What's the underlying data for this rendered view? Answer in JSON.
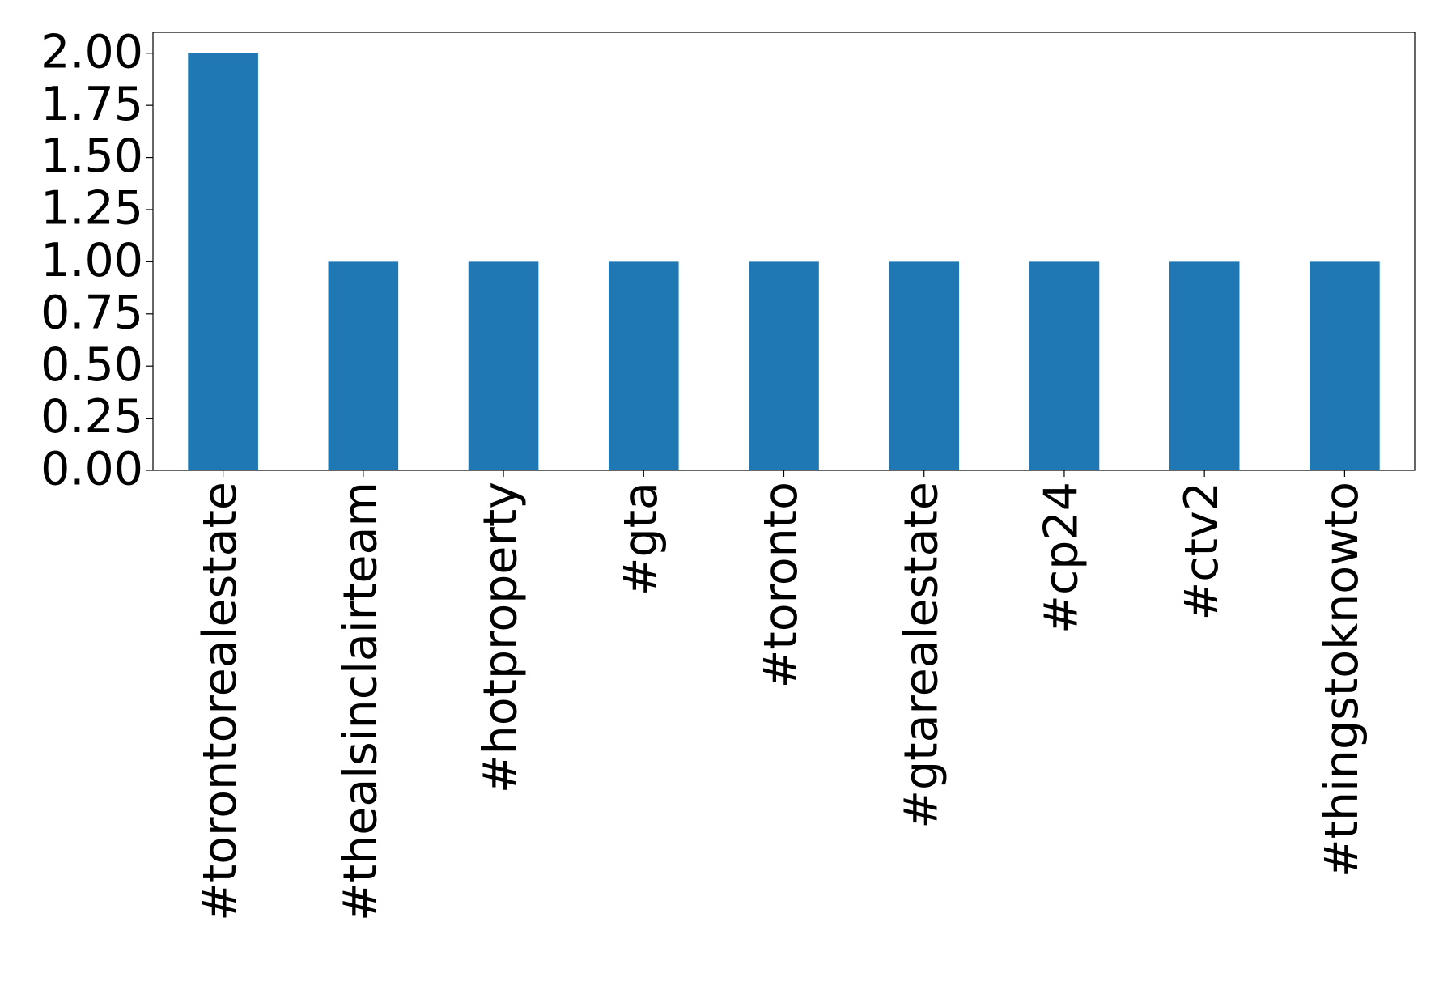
{
  "chart_data": {
    "type": "bar",
    "categories": [
      "#torontorealestate",
      "#thealsinclairteam",
      "#hotproperty",
      "#gta",
      "#toronto",
      "#gtarealestate",
      "#cp24",
      "#ctv2",
      "#thingstoknowto"
    ],
    "values": [
      2,
      1,
      1,
      1,
      1,
      1,
      1,
      1,
      1
    ],
    "color": "#1f77b4",
    "ylim": [
      0,
      2.1
    ],
    "yticks": [
      {
        "value": 0,
        "label": "0.00"
      },
      {
        "value": 0.25,
        "label": "0.25"
      },
      {
        "value": 0.5,
        "label": "0.50"
      },
      {
        "value": 0.75,
        "label": "0.75"
      },
      {
        "value": 1,
        "label": "1.00"
      },
      {
        "value": 1.25,
        "label": "1.25"
      },
      {
        "value": 1.5,
        "label": "1.50"
      },
      {
        "value": 1.75,
        "label": "1.75"
      },
      {
        "value": 2,
        "label": "2.00"
      }
    ],
    "grid": false
  }
}
